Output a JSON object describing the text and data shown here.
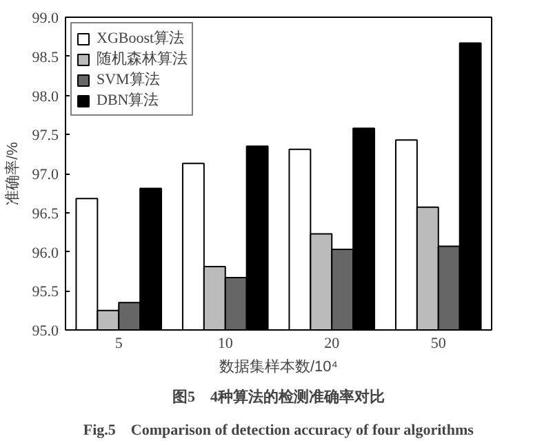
{
  "chart_data": {
    "type": "bar",
    "categories": [
      "5",
      "10",
      "20",
      "50"
    ],
    "xlabel": "数据集样本数/10⁴",
    "ylabel": "准确率/%",
    "ylim": [
      95.0,
      99.0
    ],
    "yticks": [
      {
        "value": 95,
        "label": "95.0"
      },
      {
        "value": 95.5,
        "label": "95.5"
      },
      {
        "value": 96,
        "label": "96.0"
      },
      {
        "value": 96.5,
        "label": "96.5"
      },
      {
        "value": 97,
        "label": "97.0"
      },
      {
        "value": 97.5,
        "label": "97.5"
      },
      {
        "value": 98,
        "label": "98.0"
      },
      {
        "value": 98.5,
        "label": "98.5"
      },
      {
        "value": 99,
        "label": "99.0"
      }
    ],
    "series": [
      {
        "name": "XGBoost算法",
        "color": "#ffffff",
        "values": [
          96.68,
          97.13,
          97.31,
          97.43
        ]
      },
      {
        "name": "随机森林算法",
        "color": "#bbbbbb",
        "values": [
          95.25,
          95.81,
          96.23,
          96.57
        ]
      },
      {
        "name": "SVM算法",
        "color": "#666666",
        "values": [
          95.35,
          95.67,
          96.03,
          96.07
        ]
      },
      {
        "name": "DBN算法",
        "color": "#000000",
        "values": [
          96.81,
          97.35,
          97.58,
          98.67
        ]
      }
    ],
    "legend": "top left",
    "grid": false,
    "annotations": [
      "图5　4种算法的检测准确率对比",
      "Fig.5　Comparison of detection accuracy of four algorithms"
    ]
  }
}
